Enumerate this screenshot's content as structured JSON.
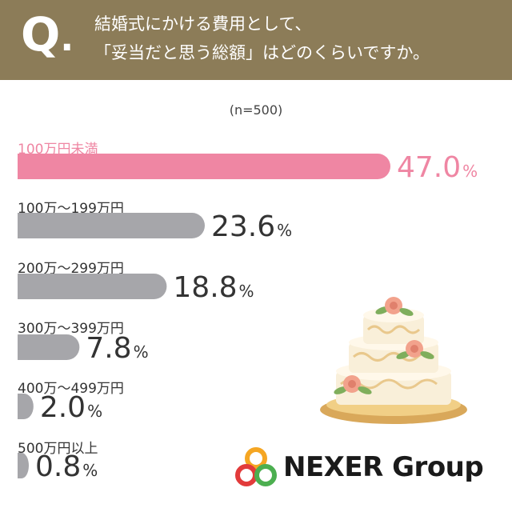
{
  "header": {
    "q_mark": "Q",
    "q_dot": ".",
    "question_line1": "結婚式にかける費用として、",
    "question_line2": "「妥当だと思う総額」はどのくらいですか。",
    "bg_color": "#8c7c58"
  },
  "sample_size": "(n=500)",
  "chart_data": {
    "type": "bar",
    "orientation": "horizontal",
    "categories": [
      "100万円未満",
      "100万～199万円",
      "200万～299万円",
      "300万～399万円",
      "400万～499万円",
      "500万円以上"
    ],
    "values": [
      47.0,
      23.6,
      18.8,
      7.8,
      2.0,
      0.8
    ],
    "value_labels": [
      "47.0",
      "23.6",
      "18.8",
      "7.8",
      "2.0",
      "0.8"
    ],
    "unit": "%",
    "xlim": [
      0,
      100
    ],
    "highlight_index": 0,
    "colors": {
      "highlight": "#ef86a3",
      "default": "#a6a6aa",
      "highlight_text": "#ef86a3",
      "default_text": "#333333"
    }
  },
  "logo": {
    "brand": "NEXER Group",
    "icon": "three-rings-logo-icon"
  },
  "illustration": {
    "icon": "wedding-cake-icon"
  }
}
